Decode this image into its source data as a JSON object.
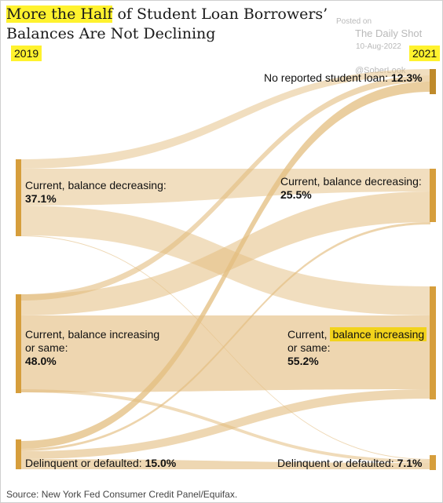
{
  "title": {
    "highlight": "More the Half",
    "rest": " of Student Loan Borrowers’ Balances Are Not Declining"
  },
  "watermark": {
    "posted_on": "Posted on",
    "publication": "The Daily Shot",
    "date": "10-Aug-2022",
    "handle": "@SoberLook"
  },
  "years": {
    "left": "2019",
    "right": "2021"
  },
  "left_nodes": {
    "decreasing": {
      "label": "Current, balance decreasing:",
      "pct": "37.1%"
    },
    "increasing": {
      "label_line1": "Current, balance increasing",
      "label_line2": "or same:",
      "pct": "48.0%"
    },
    "delinquent": {
      "label": "Delinquent or defaulted:",
      "pct": "15.0%"
    }
  },
  "right_nodes": {
    "no_loan": {
      "label": "No reported student loan:",
      "pct": "12.3%"
    },
    "decreasing": {
      "label": "Current, balance decreasing:",
      "pct": "25.5%"
    },
    "increasing": {
      "label_prefix": "Current,",
      "label_highlight": "balance increasing",
      "label_line2": "or same:",
      "pct": "55.2%"
    },
    "delinquent": {
      "label": "Delinquent or defaulted:",
      "pct": "7.1%"
    }
  },
  "colors": {
    "node": "#d69e3c",
    "node_dark": "#bf8a2b",
    "flow": "#e0b878",
    "highlight": "#fff22e"
  },
  "source": "Source: New York Fed Consumer Credit Panel/Equifax."
}
